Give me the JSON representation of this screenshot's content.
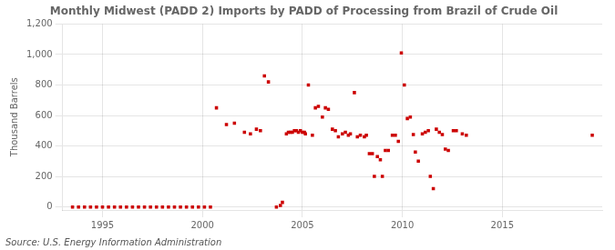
{
  "chart_data": {
    "type": "scatter",
    "title": "Monthly Midwest (PADD 2) Imports by PADD of Processing from Brazil of Crude Oil",
    "ylabel": "Thousand Barrels",
    "annotations": [
      "Source: U.S. Energy Information Administration"
    ],
    "color": "#cc0000",
    "marker": "square",
    "grid": true,
    "xlim": [
      1993.0,
      2020.0
    ],
    "ylim": [
      -20,
      1200
    ],
    "xticks": [
      1995,
      2000,
      2005,
      2010,
      2015
    ],
    "yticks": [
      0,
      200,
      400,
      600,
      800,
      {
        "value": 1000,
        "label": "1,000"
      },
      {
        "value": 1200,
        "label": "1,200"
      }
    ],
    "x": [
      1993.5,
      1993.8,
      1994.1,
      1994.4,
      1994.7,
      1995.0,
      1995.3,
      1995.6,
      1995.9,
      1996.2,
      1996.5,
      1996.8,
      1997.1,
      1997.4,
      1997.7,
      1998.0,
      1998.3,
      1998.6,
      1998.9,
      1999.2,
      1999.5,
      1999.8,
      2000.1,
      2000.4,
      2000.7,
      2001.2,
      2001.6,
      2002.1,
      2002.4,
      2002.7,
      2002.9,
      2003.1,
      2003.3,
      2003.7,
      2003.9,
      2004.0,
      2004.2,
      2004.3,
      2004.4,
      2004.5,
      2004.6,
      2004.7,
      2004.8,
      2004.9,
      2005.0,
      2005.1,
      2005.15,
      2005.3,
      2005.5,
      2005.65,
      2005.8,
      2006.0,
      2006.15,
      2006.3,
      2006.5,
      2006.65,
      2006.8,
      2007.0,
      2007.15,
      2007.3,
      2007.4,
      2007.6,
      2007.75,
      2007.9,
      2008.1,
      2008.2,
      2008.35,
      2008.5,
      2008.6,
      2008.75,
      2008.9,
      2009.0,
      2009.15,
      2009.3,
      2009.5,
      2009.65,
      2009.8,
      2009.95,
      2010.1,
      2010.25,
      2010.4,
      2010.55,
      2010.65,
      2010.8,
      2011.0,
      2011.15,
      2011.3,
      2011.4,
      2011.55,
      2011.7,
      2011.85,
      2012.0,
      2012.15,
      2012.3,
      2012.55,
      2012.7,
      2013.0,
      2013.2,
      2019.5
    ],
    "values": [
      0,
      0,
      0,
      0,
      0,
      0,
      0,
      0,
      0,
      0,
      0,
      0,
      0,
      0,
      0,
      0,
      0,
      0,
      0,
      0,
      0,
      0,
      0,
      0,
      650,
      540,
      550,
      490,
      480,
      510,
      500,
      860,
      820,
      0,
      10,
      30,
      480,
      490,
      490,
      490,
      500,
      500,
      490,
      500,
      490,
      490,
      480,
      800,
      470,
      650,
      660,
      590,
      650,
      640,
      510,
      500,
      460,
      480,
      490,
      470,
      480,
      750,
      460,
      470,
      460,
      470,
      350,
      350,
      200,
      330,
      310,
      200,
      370,
      370,
      470,
      470,
      430,
      1010,
      800,
      580,
      590,
      475,
      360,
      300,
      480,
      490,
      500,
      200,
      120,
      510,
      490,
      475,
      380,
      370,
      500,
      500,
      480,
      470,
      470
    ]
  }
}
